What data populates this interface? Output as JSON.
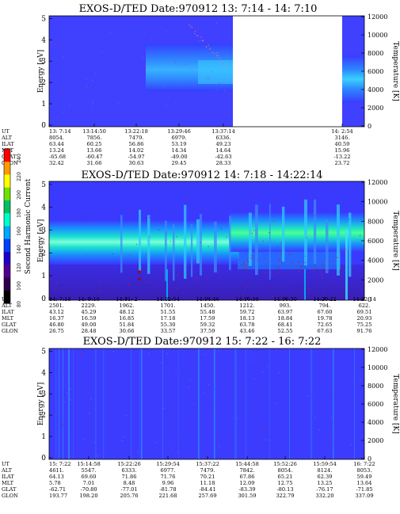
{
  "colorbar": {
    "label": "Second Harmonic Current",
    "ticks": [
      "240",
      "220",
      "200",
      "180",
      "160",
      "140",
      "120",
      "100",
      "80"
    ],
    "colors": [
      "#ff0000",
      "#ff9a00",
      "#ffff00",
      "#70e000",
      "#00c060",
      "#00ffc8",
      "#00a8ff",
      "#0040ff",
      "#2000c8",
      "#500090",
      "#300050",
      "#000000"
    ]
  },
  "panels": [
    {
      "title": "EXOS-D/TED    Date:970912  13: 7:14 - 14: 7:10",
      "ylabel_left": "Energy [eV]",
      "ylabel_right": "Temperature [K]",
      "left_ticks": [
        "5",
        "4",
        "3",
        "2",
        "1",
        "0"
      ],
      "right_ticks": [
        "12000",
        "10000",
        "8000",
        "6000",
        "4000",
        "2000",
        "0"
      ],
      "row_labels": [
        "UT",
        "ALT",
        "ILAT",
        "MLT",
        "GLAT",
        "GLON"
      ],
      "columns": [
        [
          "13: 7:14",
          "8054.",
          "63.44",
          "13.24",
          "-65.68",
          "32.42"
        ],
        [
          "13:14:50",
          "7856.",
          "60.25",
          "13.66",
          "-60.47",
          "31.66"
        ],
        [
          "13:22:18",
          "7479.",
          "56.86",
          "14.02",
          "-54.97",
          "30.63"
        ],
        [
          "13:29:46",
          "6979.",
          "53.19",
          "14.34",
          "-49.00",
          "29.45"
        ],
        [
          "13:37:14",
          "6336.",
          "49.23",
          "14.64",
          "-42.63",
          "28.33"
        ],
        [
          "14: 2:54",
          "3146.",
          "40.59",
          "15.96",
          "-13.22",
          "23.72"
        ]
      ]
    },
    {
      "title": "EXOS-D/TED    Date:970912  14: 7:18 - 14:22:14",
      "ylabel_left": "Energy [eV]",
      "ylabel_right": "Temperature [K]",
      "left_ticks": [
        "5",
        "4",
        "3",
        "2",
        "1",
        "0"
      ],
      "right_ticks": [
        "12000",
        "10000",
        "8000",
        "6000",
        "4000",
        "2000",
        "0"
      ],
      "row_labels": [
        "UT",
        "ALT",
        "ILAT",
        "MLT",
        "GLAT",
        "GLON"
      ],
      "columns": [
        [
          "14: 7:18",
          "2501.",
          "43.12",
          "16.37",
          "46.80",
          "26.75"
        ],
        [
          "14: 9:10",
          "2229.",
          "45.29",
          "16.59",
          "49.00",
          "28.48"
        ],
        [
          "14:11: 2",
          "1962.",
          "48.12",
          "16.85",
          "51.84",
          "30.66"
        ],
        [
          "14:12:54",
          "1701.",
          "51.55",
          "17.18",
          "55.30",
          "33.57"
        ],
        [
          "14:14:46",
          "1450.",
          "55.48",
          "17.59",
          "59.32",
          "37.59"
        ],
        [
          "14:16:38",
          "1212.",
          "59.72",
          "18.13",
          "63.78",
          "43.46"
        ],
        [
          "14:18:30",
          "993.",
          "63.97",
          "18.84",
          "68.41",
          "52.55"
        ],
        [
          "14:20:22",
          "794.",
          "67.60",
          "19.78",
          "72.65",
          "67.63"
        ],
        [
          "14:22:14",
          "622.",
          "69.51",
          "20.93",
          "75.25",
          "91.76"
        ]
      ]
    },
    {
      "title": "EXOS-D/TED    Date:970912  15: 7:22 - 16: 7:22",
      "ylabel_left": "Energy [eV]",
      "ylabel_right": "Temperature [K]",
      "left_ticks": [
        "5",
        "4",
        "3",
        "2",
        "1",
        "0"
      ],
      "right_ticks": [
        "12000",
        "10000",
        "8000",
        "6000",
        "4000",
        "2000",
        "0"
      ],
      "row_labels": [
        "UT",
        "ALT",
        "ILAT",
        "MLT",
        "GLAT",
        "GLON"
      ],
      "columns": [
        [
          "15: 7:22",
          "4611.",
          "64.13",
          "5.78",
          "-62.71",
          "193.77"
        ],
        [
          "15:14:58",
          "5547.",
          "69.60",
          "7.01",
          "-70.80",
          "198.20"
        ],
        [
          "15:22:26",
          "6333.",
          "71.86",
          "8.48",
          "-77.01",
          "205.76"
        ],
        [
          "15:29:54",
          "6977.",
          "71.76",
          "9.96",
          "-81.78",
          "221.68"
        ],
        [
          "15:37:22",
          "7479.",
          "70.21",
          "11.18",
          "-84.41",
          "257.69"
        ],
        [
          "15:44:58",
          "7842.",
          "67.86",
          "12.09",
          "-83.39",
          "301.59"
        ],
        [
          "15:52:26",
          "8054.",
          "65.21",
          "12.75",
          "-80.13",
          "322.79"
        ],
        [
          "15:59:54",
          "8124.",
          "62.39",
          "13.25",
          "-76.17",
          "332.20"
        ],
        [
          "16: 7:22",
          "8053.",
          "59.49",
          "13.64",
          "-71.85",
          "337.09"
        ]
      ]
    }
  ]
}
